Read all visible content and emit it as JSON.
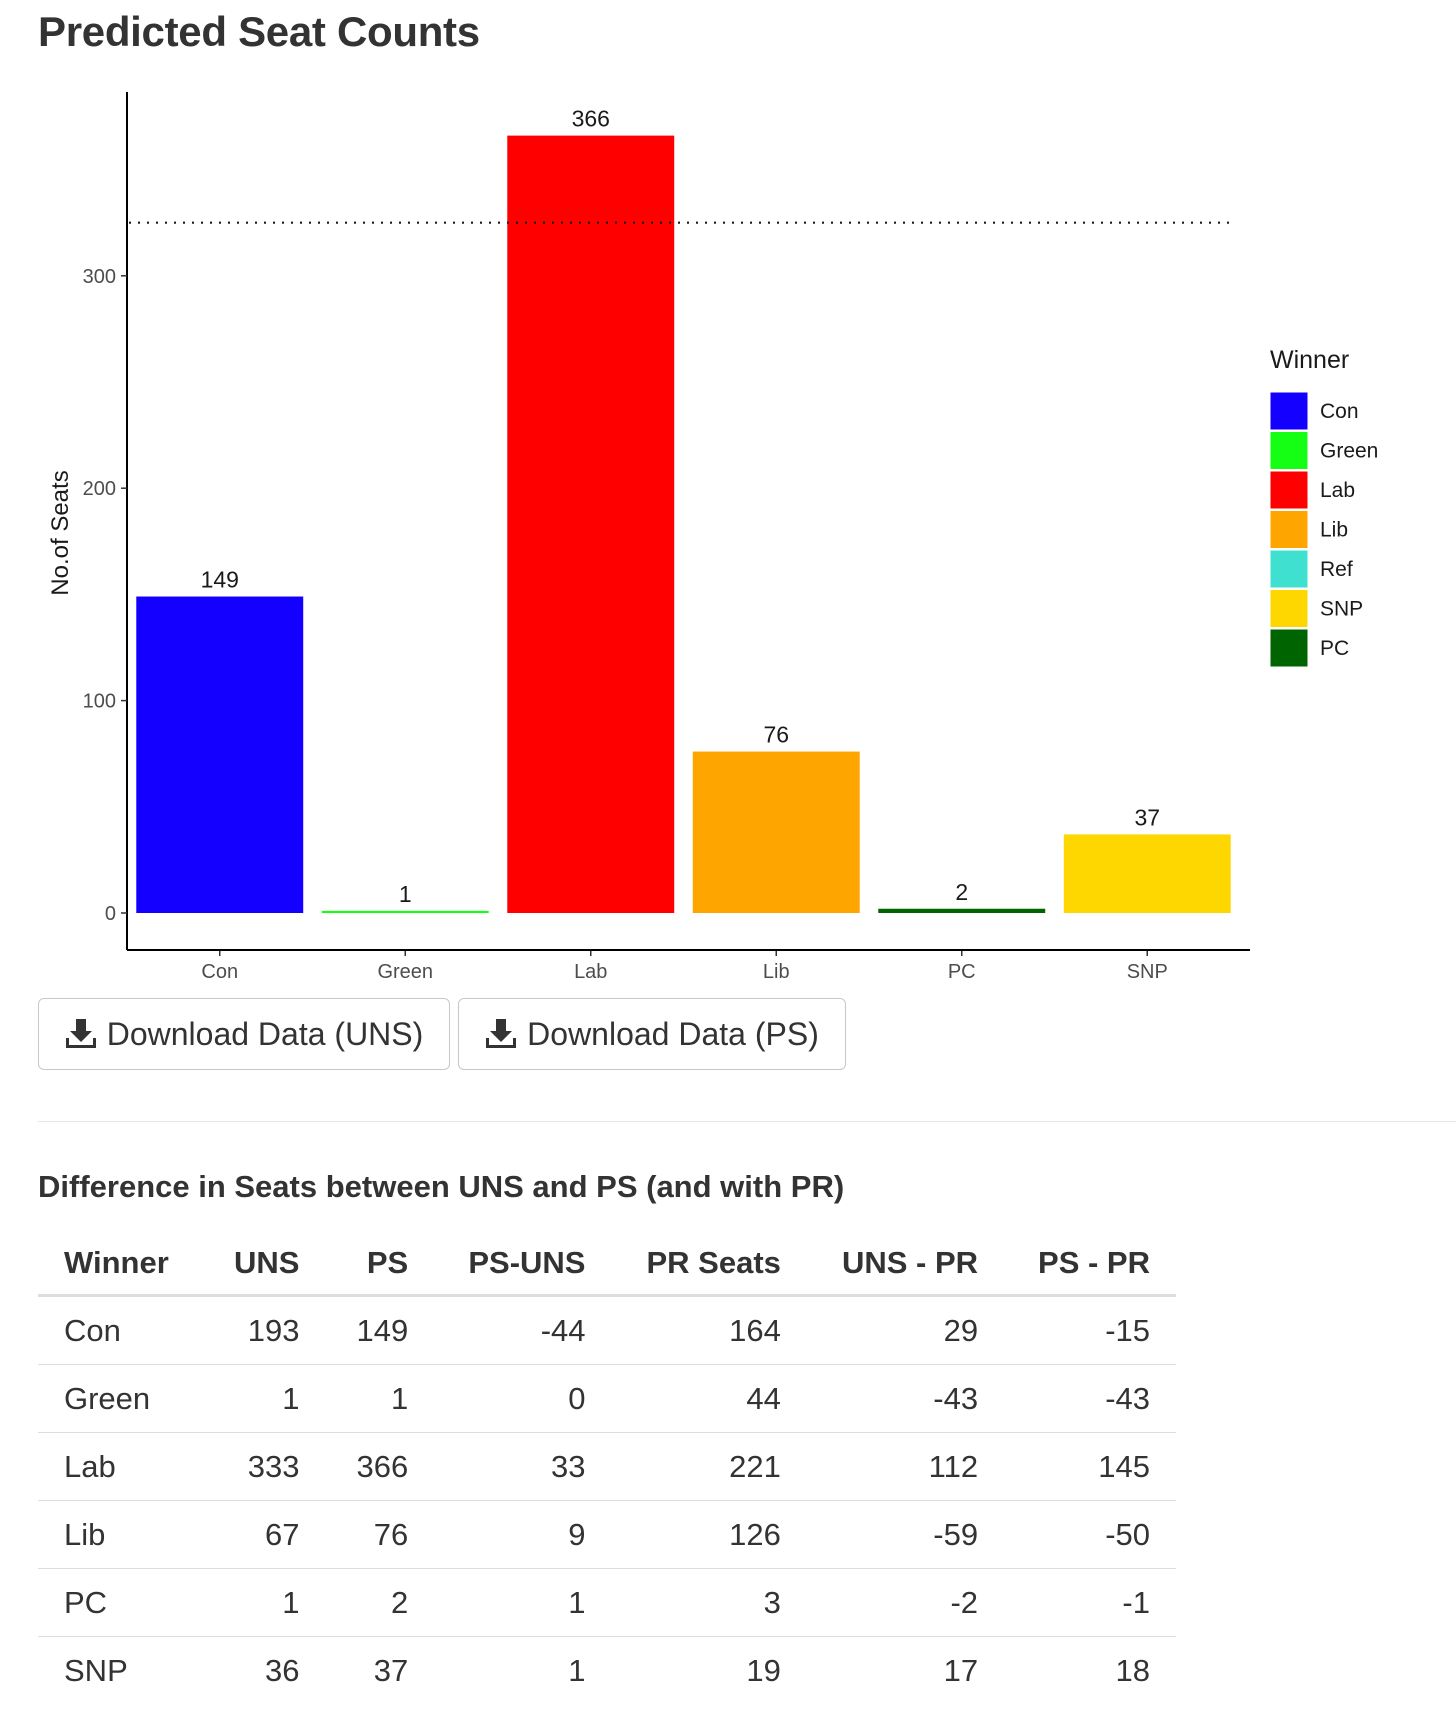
{
  "page_title": "Predicted Seat Counts",
  "chart_data": {
    "type": "bar",
    "categories": [
      "Con",
      "Green",
      "Lab",
      "Lib",
      "PC",
      "SNP"
    ],
    "values": [
      149,
      1,
      366,
      76,
      2,
      37
    ],
    "bar_colors": [
      "#1400FF",
      "#14FF14",
      "#FF0000",
      "#FFA500",
      "#006400",
      "#FFD700"
    ],
    "ylabel": "No.of Seats",
    "ylim": [
      0,
      380
    ],
    "yticks": [
      0,
      100,
      200,
      300
    ],
    "reference_line": 325,
    "reference_line_style": "dotted",
    "grid": false,
    "legend": {
      "title": "Winner",
      "placement": "right",
      "items": [
        {
          "label": "Con",
          "color": "#1400FF"
        },
        {
          "label": "Green",
          "color": "#14FF14"
        },
        {
          "label": "Lab",
          "color": "#FF0000"
        },
        {
          "label": "Lib",
          "color": "#FFA500"
        },
        {
          "label": "Ref",
          "color": "#40E0D0"
        },
        {
          "label": "SNP",
          "color": "#FFD700"
        },
        {
          "label": "PC",
          "color": "#006400"
        }
      ]
    }
  },
  "buttons": {
    "download_uns": "Download Data (UNS)",
    "download_ps": "Download Data (PS)",
    "icon": "download-icon"
  },
  "table": {
    "title": "Difference in Seats between UNS and PS (and with PR)",
    "headers": [
      "Winner",
      "UNS",
      "PS",
      "PS-UNS",
      "PR Seats",
      "UNS - PR",
      "PS - PR"
    ],
    "rows": [
      [
        "Con",
        "193",
        "149",
        "-44",
        "164",
        "29",
        "-15"
      ],
      [
        "Green",
        "1",
        "1",
        "0",
        "44",
        "-43",
        "-43"
      ],
      [
        "Lab",
        "333",
        "366",
        "33",
        "221",
        "112",
        "145"
      ],
      [
        "Lib",
        "67",
        "76",
        "9",
        "126",
        "-59",
        "-50"
      ],
      [
        "PC",
        "1",
        "2",
        "1",
        "3",
        "-2",
        "-1"
      ],
      [
        "SNP",
        "36",
        "37",
        "1",
        "19",
        "17",
        "18"
      ]
    ]
  }
}
